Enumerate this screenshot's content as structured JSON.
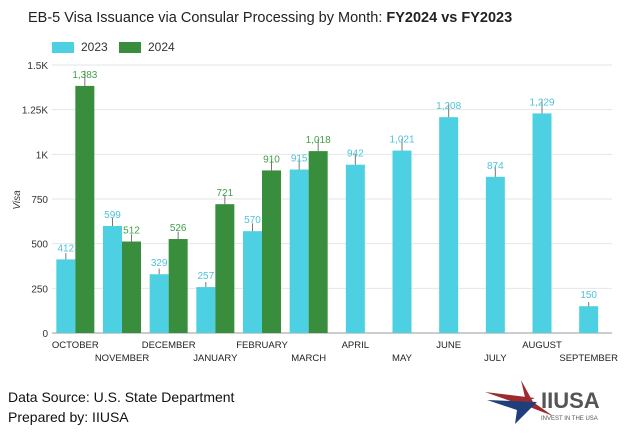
{
  "chart_data": {
    "type": "bar",
    "title_main": "EB-5 Visa Issuance via Consular Processing by Month: ",
    "title_bold": "FY2024 vs FY2023",
    "ylabel": "Visa",
    "ylim": [
      0,
      1500
    ],
    "yticks": [
      0,
      250,
      500,
      750,
      1000,
      1250,
      1500
    ],
    "ytick_labels": [
      "0",
      "250",
      "500",
      "750",
      "1K",
      "1.25K",
      "1.5K"
    ],
    "categories": [
      "OCTOBER",
      "NOVEMBER",
      "DECEMBER",
      "JANUARY",
      "FEBRUARY",
      "MARCH",
      "APRIL",
      "MAY",
      "JUNE",
      "JULY",
      "AUGUST",
      "SEPTEMBER"
    ],
    "series": [
      {
        "name": "2023",
        "color": "#4dd0e1",
        "label_color": "#4dc3d8",
        "values": [
          412,
          599,
          329,
          257,
          570,
          915,
          942,
          1021,
          1208,
          874,
          1229,
          150
        ]
      },
      {
        "name": "2024",
        "color": "#388e3c",
        "label_color": "#43a047",
        "values": [
          1383,
          512,
          526,
          721,
          910,
          1018,
          null,
          null,
          null,
          null,
          null,
          null
        ]
      }
    ],
    "value_labels_2023": [
      "412",
      "599",
      "329",
      "257",
      "570",
      "915",
      "942",
      "1,021",
      "1,208",
      "874",
      "1,229",
      "150"
    ],
    "value_labels_2024": [
      "1,383",
      "512",
      "526",
      "721",
      "910",
      "1,018"
    ],
    "legend": "top-left",
    "grid": true
  },
  "footer": {
    "source": "Data Source: U.S. State Department",
    "prepared": "Prepared by: IIUSA"
  },
  "logo": {
    "name": "IIUSA",
    "tagline": "INVEST IN THE USA"
  }
}
